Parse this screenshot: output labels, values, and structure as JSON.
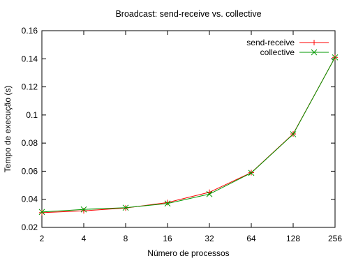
{
  "chart_data": {
    "type": "line",
    "title": "Broadcast: send-receive vs. collective",
    "xlabel": "Número de processos",
    "ylabel": "Tempo de execução (s)",
    "x_scale": "log2",
    "categories": [
      "2",
      "4",
      "8",
      "16",
      "32",
      "64",
      "128",
      "256"
    ],
    "x": [
      2,
      4,
      8,
      16,
      32,
      64,
      128,
      256
    ],
    "ylim": [
      0.02,
      0.16
    ],
    "yticks": [
      "0.02",
      "0.04",
      "0.06",
      "0.08",
      "0.1",
      "0.12",
      "0.14",
      "0.16"
    ],
    "ytick_values": [
      0.02,
      0.04,
      0.06,
      0.08,
      0.1,
      0.12,
      0.14,
      0.16
    ],
    "legend_position": "top-right",
    "grid": false,
    "series": [
      {
        "name": "send-receive",
        "color": "#ff0000",
        "marker": "plus",
        "values": [
          0.0305,
          0.0318,
          0.0338,
          0.0377,
          0.045,
          0.059,
          0.0865,
          0.141
        ]
      },
      {
        "name": "collective",
        "color": "#009900",
        "marker": "x",
        "values": [
          0.031,
          0.0328,
          0.034,
          0.037,
          0.0437,
          0.0588,
          0.0863,
          0.141
        ]
      }
    ]
  }
}
